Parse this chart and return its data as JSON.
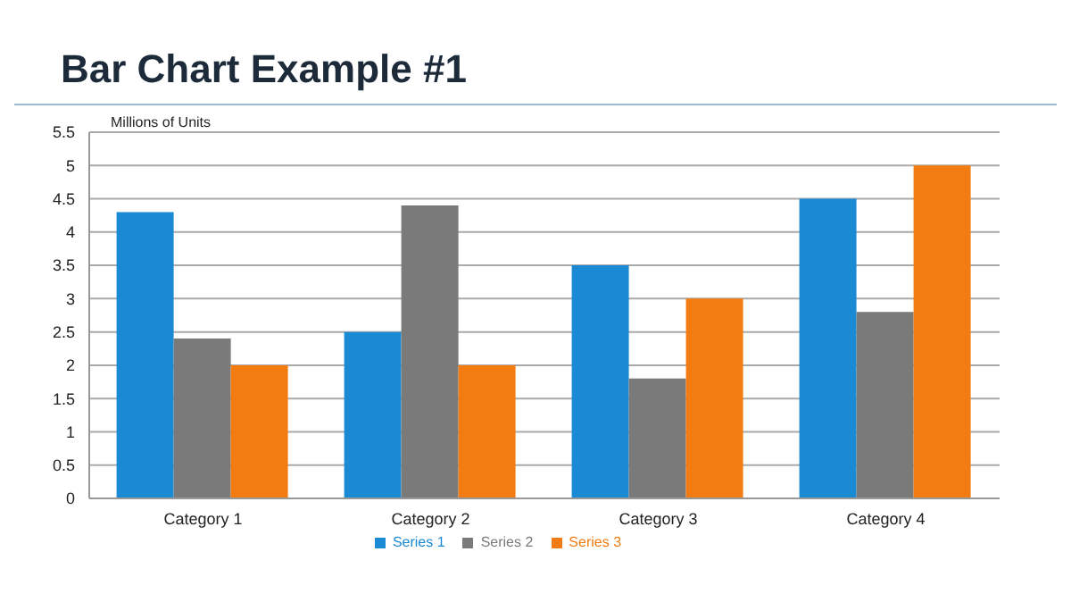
{
  "chart_data": {
    "type": "bar",
    "title": "Bar Chart Example #1",
    "ylabel": "Millions of Units",
    "categories": [
      "Category 1",
      "Category 2",
      "Category 3",
      "Category 4"
    ],
    "series": [
      {
        "name": "Series 1",
        "color": "#1a8ad4",
        "values": [
          4.3,
          2.5,
          3.5,
          4.5
        ]
      },
      {
        "name": "Series 2",
        "color": "#7a7a7a",
        "values": [
          2.4,
          4.4,
          1.8,
          2.8
        ]
      },
      {
        "name": "Series 3",
        "color": "#f27c12",
        "values": [
          2,
          2,
          3,
          5
        ]
      }
    ],
    "ylim": [
      0,
      5.5
    ],
    "yticks": [
      0,
      0.5,
      1,
      1.5,
      2,
      2.5,
      3,
      3.5,
      4,
      4.5,
      5,
      5.5
    ],
    "grid": "y",
    "legend": "bottom"
  }
}
